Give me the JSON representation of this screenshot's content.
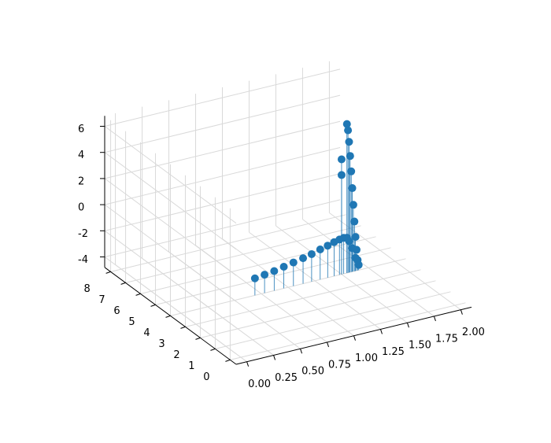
{
  "chart_data": {
    "type": "stem3d",
    "color": "#1f77b4",
    "xlim": [
      -0.1,
      2.1
    ],
    "ylim": [
      -0.4,
      8.4
    ],
    "zlim": [
      -4.8,
      6.8
    ],
    "xticks": [
      {
        "value": 0,
        "label": "0.00"
      },
      {
        "value": 0.25,
        "label": "0.25"
      },
      {
        "value": 0.5,
        "label": "0.50"
      },
      {
        "value": 0.75,
        "label": "0.75"
      },
      {
        "value": 1,
        "label": "1.00"
      },
      {
        "value": 1.25,
        "label": "1.25"
      },
      {
        "value": 1.5,
        "label": "1.50"
      },
      {
        "value": 1.75,
        "label": "1.75"
      },
      {
        "value": 2,
        "label": "2.00"
      }
    ],
    "yticks": [
      0,
      1,
      2,
      3,
      4,
      5,
      6,
      7,
      8
    ],
    "zticks": [
      -4,
      -2,
      0,
      2,
      4,
      6
    ],
    "grid": true,
    "x": [
      0.69,
      0.78,
      0.87,
      0.96,
      1.05,
      1.14,
      1.22,
      1.3,
      1.37,
      1.43,
      1.48,
      1.52,
      1.55,
      1.57,
      1.6,
      1.63,
      1.66,
      1.65,
      1.64,
      1.63,
      1.62,
      1.61,
      1.6,
      1.59,
      1.58,
      1.57,
      1.56,
      1.55,
      1.5,
      1.5
    ],
    "y": [
      4,
      4,
      4,
      4,
      4,
      4,
      4,
      4,
      4,
      4,
      4,
      4,
      4,
      4,
      4,
      4,
      4,
      4,
      4,
      4,
      4,
      4,
      4,
      4,
      4,
      4,
      4,
      4,
      4,
      4
    ],
    "z": [
      -3.5,
      -3.4,
      -3.3,
      -3.15,
      -3.0,
      -2.85,
      -2.7,
      -2.5,
      -2.35,
      -2.2,
      -2.1,
      -2.05,
      -2.1,
      -2.4,
      -3.0,
      -3.8,
      -4.4,
      -4.0,
      -3.2,
      -2.2,
      -1.0,
      0.3,
      1.6,
      2.9,
      4.1,
      5.2,
      6.1,
      6.6,
      4.0,
      2.8
    ]
  }
}
